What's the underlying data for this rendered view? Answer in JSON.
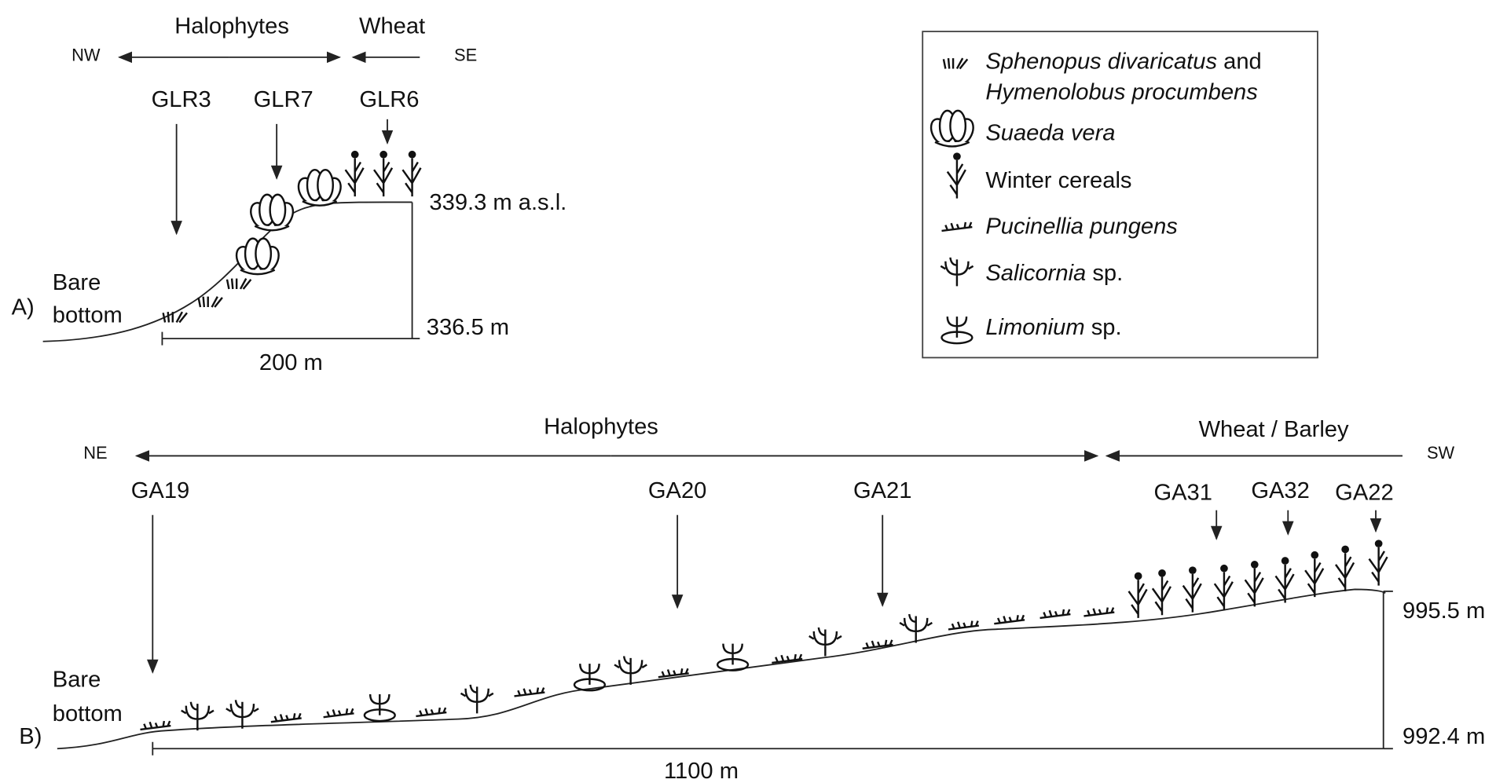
{
  "panel_a": {
    "label": "A)",
    "zone_left": "Halophytes",
    "zone_right": "Wheat",
    "direction_left": "NW",
    "direction_right": "SE",
    "sites": [
      "GLR3",
      "GLR7",
      "GLR6"
    ],
    "elevation_top": "339.3 m a.s.l.",
    "elevation_bottom": "336.5 m",
    "distance": "200 m",
    "bare_bottom": [
      "Bare",
      "bottom"
    ]
  },
  "legend": {
    "items": [
      {
        "lines": [
          [
            {
              "text": "Sphenopus divaricatus",
              "italic": true
            },
            {
              "text": " and"
            }
          ],
          [
            {
              "text": "Hymenolobus procumbens",
              "italic": true
            }
          ]
        ]
      },
      {
        "lines": [
          [
            {
              "text": "Suaeda vera",
              "italic": true
            }
          ]
        ]
      },
      {
        "lines": [
          [
            {
              "text": "Winter cereals"
            }
          ]
        ]
      },
      {
        "lines": [
          [
            {
              "text": "Pucinellia pungens",
              "italic": true
            }
          ]
        ]
      },
      {
        "lines": [
          [
            {
              "text": "Salicornia",
              "italic": true
            },
            {
              "text": " sp."
            }
          ]
        ]
      },
      {
        "lines": [
          [
            {
              "text": "Limonium",
              "italic": true
            },
            {
              "text": " sp."
            }
          ]
        ]
      }
    ]
  },
  "panel_b": {
    "label": "B)",
    "zone_left": "Halophytes",
    "zone_right": "Wheat / Barley",
    "direction_left": "NE",
    "direction_right": "SW",
    "sites": [
      "GA19",
      "GA20",
      "GA21",
      "GA31",
      "GA32",
      "GA22"
    ],
    "elevation_top": "995.5 m",
    "elevation_bottom": "992.4 m",
    "distance": "1100 m",
    "bare_bottom": [
      "Bare",
      "bottom"
    ]
  }
}
